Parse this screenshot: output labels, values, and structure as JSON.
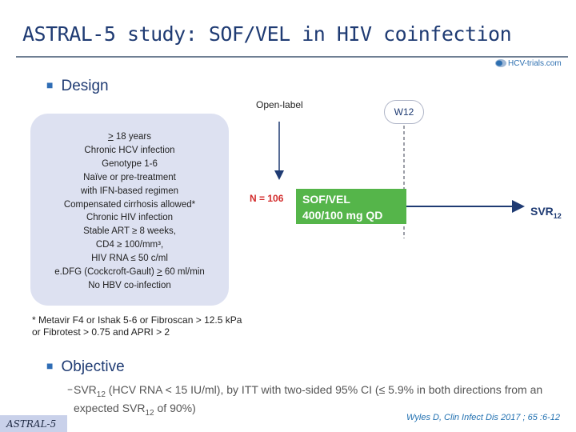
{
  "header": {
    "title": "ASTRAL-5 study: SOF/VEL in HIV coinfection",
    "logo_text": "HCV-trials.com"
  },
  "design": {
    "heading": "Design",
    "criteria": [
      {
        "prefix": ">",
        "text": " 18 years"
      },
      {
        "text": "Chronic HCV infection"
      },
      {
        "text": "Genotype 1-6"
      },
      {
        "text": "Naïve or pre-treatment"
      },
      {
        "text": "with IFN-based regimen"
      },
      {
        "text": "Compensated cirrhosis allowed*"
      },
      {
        "text": "Chronic HIV infection"
      },
      {
        "text": "Stable ART ≥ 8 weeks,"
      },
      {
        "text": "CD4 ≥ 100/mm³,"
      },
      {
        "text": "HIV RNA ≤ 50 c/ml"
      },
      {
        "before": "e.DFG (Cockcroft-Gault) ",
        "u": ">",
        "after": " 60 ml/min"
      },
      {
        "text": "No HBV co-infection"
      }
    ],
    "open_label": "Open-label",
    "week_label": "W12",
    "n_label": "N = 106",
    "arm_line1": "SOF/VEL",
    "arm_line2": "400/100 mg QD",
    "endpoint": "SVR",
    "endpoint_sub": "12",
    "footnote_line1": "* Metavir F4 or Ishak 5-6 or Fibroscan > 12.5 kPa",
    "footnote_line2": "or Fibrotest > 0.75 and APRI > 2"
  },
  "objective": {
    "heading": "Objective",
    "t1": "SVR",
    "sub1": "12",
    "t2": " (HCV RNA < 15 IU/ml), by ITT with two-sided 95% CI (≤ 5.9% in both directions from an expected SVR",
    "sub2": "12",
    "t3": " of 90%)"
  },
  "footer": {
    "citation": "Wyles D, Clin Infect Dis 2017 ; 65 :6-12",
    "tag": "ASTRAL-5"
  },
  "colors": {
    "title": "#1f3b73",
    "arm": "#55b54a",
    "n_label": "#d32d2d",
    "criteria_bg": "#dde1f1"
  }
}
